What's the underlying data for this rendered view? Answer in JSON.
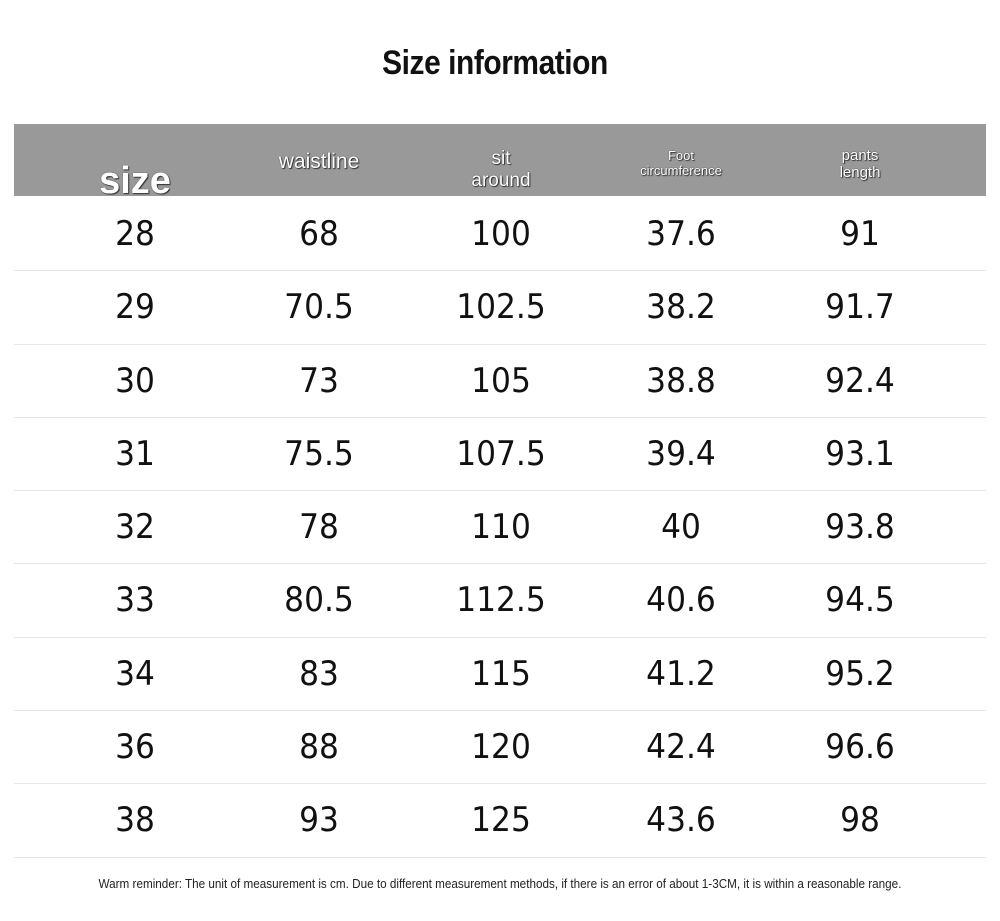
{
  "title": "Size information",
  "headers": {
    "size": "size",
    "waistline": "waistline",
    "sit_line1": "sit",
    "sit_line2": "around",
    "foot_line1": "Foot",
    "foot_line2": "circumference",
    "pants_line1": "pants",
    "pants_line2": "length"
  },
  "rows": [
    [
      "28",
      "68",
      "100",
      "37.6",
      "91"
    ],
    [
      "29",
      "70.5",
      "102.5",
      "38.2",
      "91.7"
    ],
    [
      "30",
      "73",
      "105",
      "38.8",
      "92.4"
    ],
    [
      "31",
      "75.5",
      "107.5",
      "39.4",
      "93.1"
    ],
    [
      "32",
      "78",
      "110",
      "40",
      "93.8"
    ],
    [
      "33",
      "80.5",
      "112.5",
      "40.6",
      "94.5"
    ],
    [
      "34",
      "83",
      "115",
      "41.2",
      "95.2"
    ],
    [
      "36",
      "88",
      "120",
      "42.4",
      "96.6"
    ],
    [
      "38",
      "93",
      "125",
      "43.6",
      "98"
    ]
  ],
  "footnote": "Warm reminder: The unit of measurement is cm. Due to different measurement methods, if there is an error of about 1-3CM, it is within a reasonable range.",
  "colors": {
    "header_bg": "#999999",
    "header_text": "#ffffff",
    "row_divider": "#e6e6e6"
  }
}
